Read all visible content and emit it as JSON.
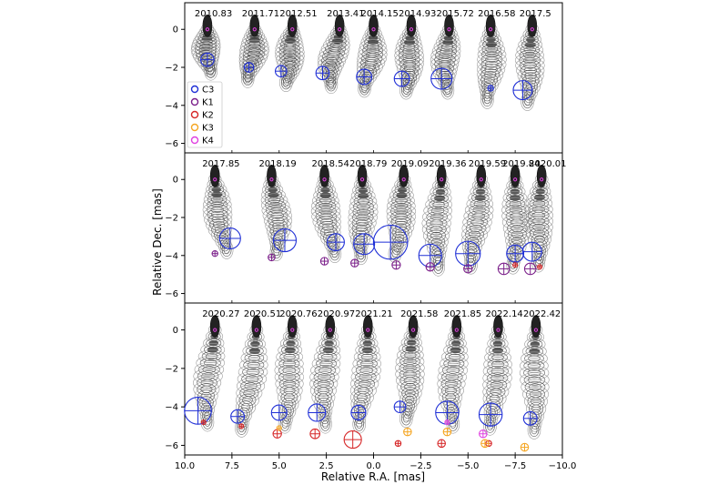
{
  "chart_data": {
    "type": "scatter",
    "title": "",
    "xlabel": "Relative R.A. [mas]",
    "ylabel": "Relative Dec. [mas]",
    "xlim": [
      10.0,
      -10.0
    ],
    "ylim": [
      -6.5,
      1.4
    ],
    "x_ticks": [
      "10.0",
      "7.5",
      "5.0",
      "2.5",
      "0.0",
      "−2.5",
      "−5.0",
      "−7.5",
      "−10.0"
    ],
    "y_ticks": [
      "0",
      "−2",
      "−4",
      "−6"
    ],
    "legend": {
      "position": "upper-left of top panel",
      "entries": [
        {
          "name": "C3",
          "color": "#1f2fd6"
        },
        {
          "name": "K1",
          "color": "#7b1f8a"
        },
        {
          "name": "K2",
          "color": "#d62728"
        },
        {
          "name": "K3",
          "color": "#f5a623"
        },
        {
          "name": "K4",
          "color": "#e040e0"
        }
      ]
    },
    "panels": [
      {
        "epochs": [
          {
            "label": "2010.83",
            "x_offset": 8.8,
            "C3": {
              "dx": -0.0,
              "dy": -1.6,
              "r": 0.35
            }
          },
          {
            "label": "2011.71",
            "x_offset": 6.3,
            "C3": {
              "dx": 0.3,
              "dy": -2.0,
              "r": 0.25
            }
          },
          {
            "label": "2012.51",
            "x_offset": 4.3,
            "C3": {
              "dx": 0.6,
              "dy": -2.2,
              "r": 0.3
            }
          },
          {
            "label": "2013.41",
            "x_offset": 1.8,
            "C3": {
              "dx": 0.9,
              "dy": -2.3,
              "r": 0.35
            }
          },
          {
            "label": "2014.15",
            "x_offset": 0.0,
            "C3": {
              "dx": 0.5,
              "dy": -2.5,
              "r": 0.4
            }
          },
          {
            "label": "2014.93",
            "x_offset": -2.0,
            "C3": {
              "dx": 0.5,
              "dy": -2.6,
              "r": 0.4
            }
          },
          {
            "label": "2015.72",
            "x_offset": -4.0,
            "C3": {
              "dx": 0.4,
              "dy": -2.6,
              "r": 0.55
            }
          },
          {
            "label": "2016.58",
            "x_offset": -6.2,
            "C3": {
              "dx": 0.0,
              "dy": -3.1,
              "r": 0.15
            }
          },
          {
            "label": "2017.5",
            "x_offset": -8.4,
            "C3": {
              "dx": 0.5,
              "dy": -3.2,
              "r": 0.5
            }
          }
        ]
      },
      {
        "epochs": [
          {
            "label": "2017.85",
            "x_offset": 8.4,
            "C3": {
              "dx": -0.8,
              "dy": -3.1,
              "r": 0.55
            },
            "K1": {
              "dx": 0.0,
              "dy": -3.9,
              "r": 0.15
            }
          },
          {
            "label": "2018.19",
            "x_offset": 5.4,
            "C3": {
              "dx": -0.7,
              "dy": -3.2,
              "r": 0.6
            },
            "K1": {
              "dx": 0.0,
              "dy": -4.1,
              "r": 0.18
            }
          },
          {
            "label": "2018.54",
            "x_offset": 2.6,
            "C3": {
              "dx": -0.6,
              "dy": -3.3,
              "r": 0.45
            },
            "K1": {
              "dx": -0.0,
              "dy": -4.3,
              "r": 0.2
            }
          },
          {
            "label": "2018.79",
            "x_offset": 0.6,
            "C3": {
              "dx": -0.1,
              "dy": -3.4,
              "r": 0.55
            },
            "K1": {
              "dx": 0.4,
              "dy": -4.4,
              "r": 0.2
            }
          },
          {
            "label": "2019.09",
            "x_offset": -1.6,
            "C3": {
              "dx": 0.7,
              "dy": -3.3,
              "r": 0.9
            },
            "K1": {
              "dx": 0.4,
              "dy": -4.5,
              "r": 0.22
            }
          },
          {
            "label": "2019.36",
            "x_offset": -3.6,
            "C3": {
              "dx": 0.6,
              "dy": -4.0,
              "r": 0.6
            },
            "K1": {
              "dx": 0.6,
              "dy": -4.6,
              "r": 0.22
            }
          },
          {
            "label": "2019.59",
            "x_offset": -5.7,
            "C3": {
              "dx": 0.7,
              "dy": -3.9,
              "r": 0.65
            },
            "K1": {
              "dx": 0.7,
              "dy": -4.7,
              "r": 0.22
            }
          },
          {
            "label": "2019.84",
            "x_offset": -7.5,
            "C3": {
              "dx": 0.0,
              "dy": -3.9,
              "r": 0.45
            },
            "K1": {
              "dx": 0.6,
              "dy": -4.7,
              "r": 0.3
            },
            "K2": {
              "dx": 0.0,
              "dy": -4.5,
              "r": 0.08
            }
          },
          {
            "label": "2020.01",
            "x_offset": -8.9,
            "C3": {
              "dx": 0.5,
              "dy": -3.8,
              "r": 0.5
            },
            "K1": {
              "dx": 0.6,
              "dy": -4.7,
              "r": 0.3
            },
            "K2": {
              "dx": 0.1,
              "dy": -4.6,
              "r": 0.08
            }
          }
        ]
      },
      {
        "epochs": [
          {
            "label": "2020.27",
            "x_offset": 8.4,
            "C3": {
              "dx": 0.9,
              "dy": -4.2,
              "r": 0.7
            },
            "K2": {
              "dx": 0.6,
              "dy": -4.8,
              "r": 0.08
            }
          },
          {
            "label": "2020.51",
            "x_offset": 6.2,
            "C3": {
              "dx": 1.0,
              "dy": -4.5,
              "r": 0.35
            },
            "K2": {
              "dx": 0.8,
              "dy": -5.0,
              "r": 0.08
            }
          },
          {
            "label": "2020.76",
            "x_offset": 4.3,
            "C3": {
              "dx": 0.7,
              "dy": -4.3,
              "r": 0.4
            },
            "K2": {
              "dx": 0.8,
              "dy": -5.4,
              "r": 0.22
            },
            "K3": {
              "dx": 0.7,
              "dy": -5.1,
              "r": 0.12
            }
          },
          {
            "label": "2020.97",
            "x_offset": 2.3,
            "C3": {
              "dx": 0.7,
              "dy": -4.3,
              "r": 0.45
            },
            "K2": {
              "dx": 0.8,
              "dy": -5.4,
              "r": 0.25
            }
          },
          {
            "label": "2021.21",
            "x_offset": 0.3,
            "C3": {
              "dx": 0.5,
              "dy": -4.3,
              "r": 0.38
            },
            "K2": {
              "dx": 0.8,
              "dy": -5.7,
              "r": 0.45
            }
          },
          {
            "label": "2021.58",
            "x_offset": -2.1,
            "C3": {
              "dx": 0.7,
              "dy": -4.0,
              "r": 0.3
            },
            "K3": {
              "dx": 0.3,
              "dy": -5.3,
              "r": 0.2
            },
            "K2": {
              "dx": 0.8,
              "dy": -5.9,
              "r": 0.15
            }
          },
          {
            "label": "2021.85",
            "x_offset": -4.4,
            "C3": {
              "dx": 0.5,
              "dy": -4.3,
              "r": 0.6
            },
            "K3": {
              "dx": 0.5,
              "dy": -5.3,
              "r": 0.2
            },
            "K2": {
              "dx": 0.8,
              "dy": -5.9,
              "r": 0.2
            },
            "K4": {
              "dx": 0.5,
              "dy": -4.8,
              "r": 0.06
            }
          },
          {
            "label": "2022.14",
            "x_offset": -6.6,
            "C3": {
              "dx": 0.4,
              "dy": -4.4,
              "r": 0.6
            },
            "K3": {
              "dx": 0.7,
              "dy": -5.9,
              "r": 0.2
            },
            "K2": {
              "dx": 0.5,
              "dy": -5.9,
              "r": 0.15
            },
            "K4": {
              "dx": 0.8,
              "dy": -5.4,
              "r": 0.2
            }
          },
          {
            "label": "2022.42",
            "x_offset": -8.6,
            "C3": {
              "dx": 0.3,
              "dy": -4.6,
              "r": 0.35
            },
            "K3": {
              "dx": 0.6,
              "dy": -6.1,
              "r": 0.2
            }
          }
        ]
      }
    ]
  }
}
